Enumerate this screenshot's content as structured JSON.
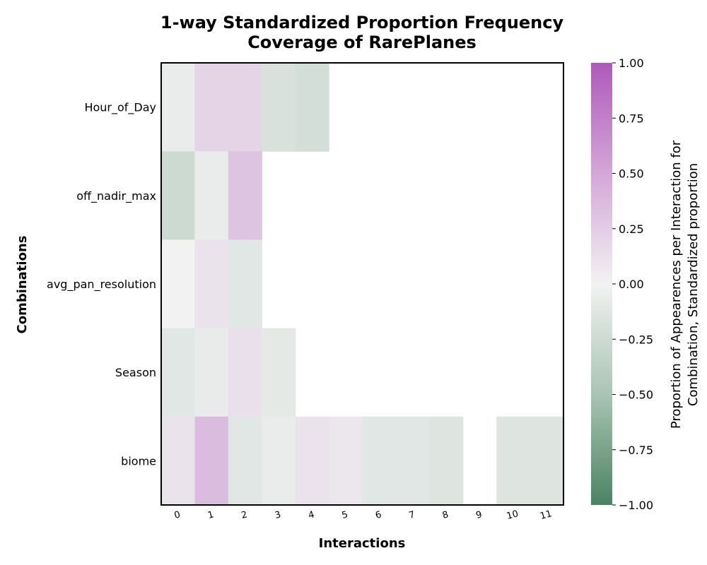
{
  "chart_data": {
    "type": "heatmap",
    "title_line1": "1-way Standardized Proportion Frequency",
    "title_line2": "Coverage of RarePlanes",
    "xlabel": "Interactions",
    "ylabel": "Combinations",
    "colorbar_label_line1": "Proportion of Appearences per Interaction for",
    "colorbar_label_line2": "Combination, Standardized proportion",
    "colorbar_range": [
      -1.0,
      1.0
    ],
    "colorbar_ticks": [
      "1.00",
      "0.75",
      "0.50",
      "0.25",
      "0.00",
      "−0.25",
      "−0.50",
      "−0.75",
      "−1.00"
    ],
    "colormap": {
      "low": "#4a8362",
      "mid": "#f2f2f2",
      "high": "#ad5ab8"
    },
    "x_categories": [
      "0",
      "1",
      "2",
      "3",
      "4",
      "5",
      "6",
      "7",
      "8",
      "9",
      "10",
      "11"
    ],
    "y_categories": [
      "Hour_of_Day",
      "off_nadir_max",
      "avg_pan_resolution",
      "Season",
      "biome"
    ],
    "values": [
      [
        -0.05,
        0.2,
        0.2,
        -0.15,
        -0.18,
        null,
        null,
        null,
        null,
        null,
        null,
        null
      ],
      [
        -0.22,
        -0.05,
        0.3,
        null,
        null,
        null,
        null,
        null,
        null,
        null,
        null,
        null
      ],
      [
        0.0,
        0.1,
        -0.1,
        null,
        null,
        null,
        null,
        null,
        null,
        null,
        null,
        null
      ],
      [
        -0.1,
        -0.06,
        0.12,
        -0.08,
        null,
        null,
        null,
        null,
        null,
        null,
        null,
        null
      ],
      [
        0.1,
        0.35,
        -0.1,
        -0.05,
        0.1,
        0.08,
        -0.1,
        -0.1,
        -0.12,
        null,
        -0.12,
        -0.12
      ]
    ]
  }
}
